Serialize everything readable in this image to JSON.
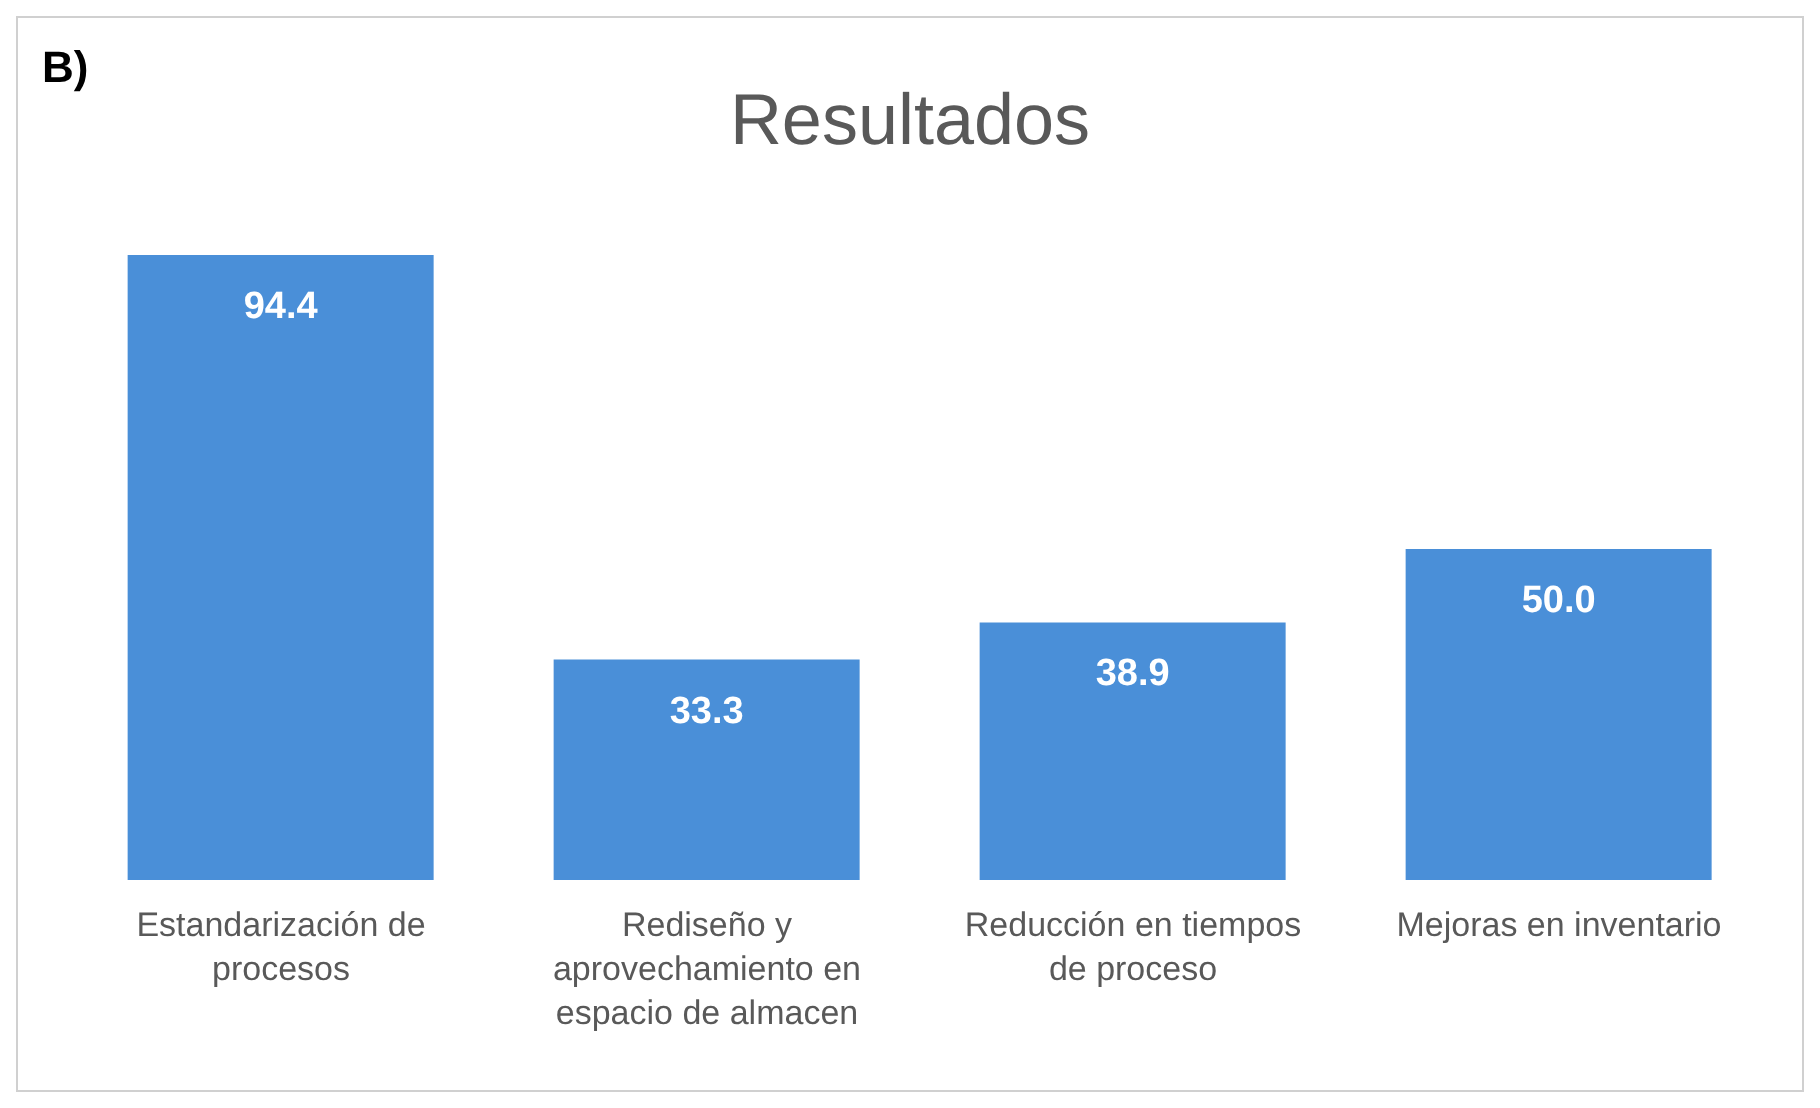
{
  "chart_data": {
    "type": "bar",
    "title": "Resultados",
    "annotations": [
      "B)"
    ],
    "categories": [
      "Estandarización  de procesos",
      "Rediseño y aprovechamiento en espacio de almacen",
      "Reducción en tiempos de proceso",
      "Mejoras en inventario"
    ],
    "values": [
      94.4,
      33.3,
      38.9,
      50.0
    ],
    "value_labels": [
      "94.4",
      "33.3",
      "38.9",
      "50.0"
    ],
    "color": "#4a8fd8",
    "tick_labels": "x",
    "grid": false,
    "legend": false
  }
}
